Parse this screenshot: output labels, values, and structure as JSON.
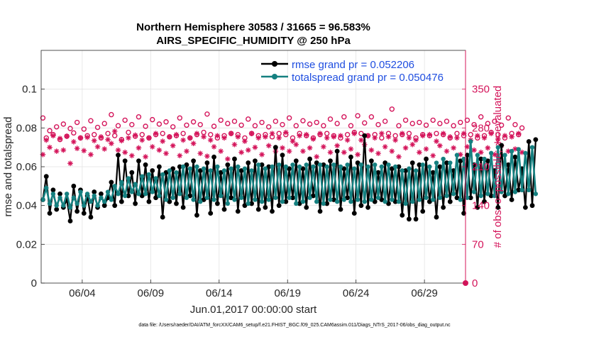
{
  "chart_data": {
    "type": "line",
    "title": "Northern Hemisphere 30583 / 31665 = 96.583%",
    "subtitle": "AIRS_SPECIFIC_HUMIDITY @ 250 hPa",
    "xlabel": "Jun.01,2017 00:00:00 start",
    "ylabel": "rmse and totalspread",
    "y2label": "# of obs: o=possible; ∗=evaluated",
    "footer": "data file: /Users/raeder/DAI/ATM_forcXX/CAM6_setup/f.e21.FHIST_BGC.f09_025.CAM6assim.011/Diags_NTrS_2017-06/obs_diag_output.nc",
    "xlim": [
      1,
      32
    ],
    "ylim": [
      0,
      0.12
    ],
    "y2lim": [
      0,
      420
    ],
    "x_ticks": [
      {
        "label": "06/04",
        "value": 4
      },
      {
        "label": "06/09",
        "value": 9
      },
      {
        "label": "06/14",
        "value": 14
      },
      {
        "label": "06/19",
        "value": 19
      },
      {
        "label": "06/24",
        "value": 24
      },
      {
        "label": "06/29",
        "value": 29
      }
    ],
    "y_ticks": [
      {
        "label": "0",
        "value": 0
      },
      {
        "label": "0.02",
        "value": 0.02
      },
      {
        "label": "0.04",
        "value": 0.04
      },
      {
        "label": "0.06",
        "value": 0.06
      },
      {
        "label": "0.08",
        "value": 0.08
      },
      {
        "label": "0.1",
        "value": 0.1
      }
    ],
    "y2_ticks": [
      {
        "label": "0",
        "value": 0
      },
      {
        "label": "70",
        "value": 70
      },
      {
        "label": "140",
        "value": 140
      },
      {
        "label": "210",
        "value": 210
      },
      {
        "label": "280",
        "value": 280
      },
      {
        "label": "350",
        "value": 350
      }
    ],
    "grid": true,
    "legend": "top-right",
    "time_step_days": 0.25,
    "x_start": 1.125,
    "series": [
      {
        "name": "rmse grand pr = 0.052206",
        "color": "#000000",
        "marker": "circle",
        "values": [
          0.043,
          0.055,
          0.036,
          0.048,
          0.038,
          0.046,
          0.039,
          0.043,
          0.032,
          0.05,
          0.037,
          0.048,
          0.036,
          0.045,
          0.034,
          0.047,
          0.039,
          0.046,
          0.04,
          0.044,
          0.052,
          0.04,
          0.066,
          0.042,
          0.063,
          0.045,
          0.057,
          0.041,
          0.063,
          0.045,
          0.061,
          0.042,
          0.058,
          0.044,
          0.06,
          0.034,
          0.057,
          0.042,
          0.059,
          0.041,
          0.06,
          0.039,
          0.061,
          0.045,
          0.063,
          0.035,
          0.058,
          0.043,
          0.062,
          0.036,
          0.065,
          0.041,
          0.057,
          0.038,
          0.061,
          0.044,
          0.064,
          0.037,
          0.058,
          0.04,
          0.062,
          0.041,
          0.063,
          0.038,
          0.061,
          0.039,
          0.06,
          0.037,
          0.07,
          0.04,
          0.066,
          0.042,
          0.059,
          0.044,
          0.063,
          0.041,
          0.059,
          0.039,
          0.064,
          0.045,
          0.062,
          0.037,
          0.061,
          0.041,
          0.063,
          0.043,
          0.068,
          0.038,
          0.059,
          0.044,
          0.065,
          0.036,
          0.062,
          0.04,
          0.076,
          0.039,
          0.063,
          0.042,
          0.057,
          0.043,
          0.062,
          0.041,
          0.059,
          0.042,
          0.06,
          0.035,
          0.058,
          0.033,
          0.062,
          0.033,
          0.061,
          0.037,
          0.064,
          0.042,
          0.057,
          0.034,
          0.06,
          0.039,
          0.062,
          0.042,
          0.058,
          0.044,
          0.063,
          0.036,
          0.066,
          0.044,
          0.061,
          0.039,
          0.064,
          0.042,
          0.063,
          0.045,
          0.058,
          0.039,
          0.071,
          0.045,
          0.061,
          0.043,
          0.065,
          0.048,
          0.059,
          0.039,
          0.073,
          0.04,
          0.074
        ]
      },
      {
        "name": "totalspread grand pr = 0.050476",
        "color": "#158080",
        "marker": "circle",
        "values": [
          0.043,
          0.049,
          0.041,
          0.046,
          0.04,
          0.044,
          0.04,
          0.046,
          0.039,
          0.044,
          0.041,
          0.047,
          0.04,
          0.046,
          0.042,
          0.045,
          0.04,
          0.044,
          0.042,
          0.047,
          0.043,
          0.05,
          0.046,
          0.052,
          0.045,
          0.054,
          0.047,
          0.051,
          0.046,
          0.055,
          0.046,
          0.056,
          0.047,
          0.054,
          0.045,
          0.056,
          0.043,
          0.058,
          0.044,
          0.057,
          0.046,
          0.06,
          0.044,
          0.059,
          0.043,
          0.06,
          0.042,
          0.059,
          0.044,
          0.058,
          0.043,
          0.06,
          0.045,
          0.058,
          0.041,
          0.059,
          0.043,
          0.06,
          0.044,
          0.059,
          0.041,
          0.058,
          0.043,
          0.061,
          0.042,
          0.059,
          0.043,
          0.06,
          0.044,
          0.061,
          0.042,
          0.06,
          0.044,
          0.061,
          0.041,
          0.06,
          0.042,
          0.061,
          0.044,
          0.06,
          0.042,
          0.061,
          0.041,
          0.06,
          0.043,
          0.061,
          0.042,
          0.06,
          0.043,
          0.061,
          0.042,
          0.059,
          0.043,
          0.061,
          0.042,
          0.06,
          0.043,
          0.061,
          0.044,
          0.06,
          0.042,
          0.061,
          0.043,
          0.06,
          0.042,
          0.058,
          0.041,
          0.059,
          0.042,
          0.058,
          0.043,
          0.061,
          0.044,
          0.06,
          0.043,
          0.062,
          0.044,
          0.064,
          0.045,
          0.062,
          0.046,
          0.066,
          0.043,
          0.064,
          0.044,
          0.073,
          0.047,
          0.066,
          0.045,
          0.064,
          0.046,
          0.067,
          0.045,
          0.07,
          0.047,
          0.066,
          0.046,
          0.068,
          0.047,
          0.069,
          0.048,
          0.067,
          0.048,
          0.07,
          0.046
        ]
      },
      {
        "name": "obs possible",
        "axis": "right",
        "color": "#d4145a",
        "marker": "o",
        "values": [
          298,
          262,
          275,
          268,
          282,
          259,
          287,
          265,
          279,
          271,
          290,
          262,
          278,
          266,
          293,
          268,
          281,
          262,
          288,
          270,
          304,
          266,
          284,
          259,
          294,
          272,
          286,
          265,
          300,
          268,
          283,
          262,
          295,
          268,
          287,
          270,
          291,
          264,
          282,
          266,
          298,
          270,
          285,
          262,
          291,
          268,
          286,
          272,
          305,
          268,
          283,
          262,
          294,
          266,
          288,
          270,
          292,
          268,
          285,
          262,
          296,
          270,
          284,
          266,
          290,
          268,
          282,
          264,
          292,
          270,
          286,
          268,
          298,
          262,
          284,
          270,
          293,
          266,
          287,
          262,
          290,
          268,
          284,
          270,
          296,
          266,
          288,
          262,
          300,
          268,
          284,
          272,
          302,
          270,
          289,
          266,
          300,
          268,
          286,
          262,
          292,
          270,
          314,
          266,
          284,
          268,
          294,
          270,
          288,
          262,
          290,
          268,
          285,
          266,
          294,
          270,
          288,
          268,
          292,
          262,
          284,
          270,
          290,
          266,
          294,
          268,
          286,
          262,
          300,
          266,
          288,
          272,
          292,
          268,
          285,
          262,
          298,
          270,
          286,
          268,
          280
        ]
      },
      {
        "name": "obs evaluated",
        "axis": "right",
        "color": "#d4145a",
        "marker": "*",
        "values": [
          232,
          258,
          245,
          266,
          238,
          261,
          240,
          265,
          216,
          255,
          243,
          262,
          239,
          263,
          232,
          257,
          246,
          264,
          242,
          259,
          252,
          274,
          240,
          257,
          236,
          262,
          230,
          267,
          244,
          258,
          228,
          262,
          246,
          270,
          240,
          256,
          234,
          264,
          248,
          268,
          230,
          258,
          238,
          262,
          252,
          270,
          234,
          264,
          229,
          258,
          246,
          266,
          238,
          262,
          224,
          270,
          250,
          264,
          236,
          256,
          240,
          270,
          245,
          262,
          232,
          264,
          248,
          270,
          238,
          262,
          244,
          272,
          238,
          256,
          250,
          266,
          238,
          268,
          244,
          260,
          228,
          270,
          246,
          262,
          236,
          264,
          248,
          266,
          236,
          258,
          242,
          270,
          232,
          258,
          250,
          266,
          240,
          262,
          234,
          270,
          246,
          264,
          238,
          258,
          228,
          270,
          244,
          262,
          250,
          258,
          236,
          266,
          242,
          268,
          230,
          256,
          248,
          270,
          238,
          264,
          244,
          262,
          232,
          270,
          246,
          258,
          240,
          266,
          236,
          262,
          244,
          270,
          232,
          260,
          248,
          266,
          238,
          264,
          242,
          270,
          236
        ]
      }
    ],
    "legend_text_color": "#1f4ee0",
    "axis_right_color": "#d4145a"
  }
}
